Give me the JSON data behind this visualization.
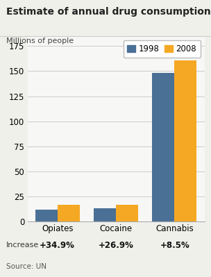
{
  "title": "Estimate of annual drug consumption",
  "ylabel": "Millions of people",
  "categories": [
    "Opiates",
    "Cocaine",
    "Cannabis"
  ],
  "values_1998": [
    12,
    13,
    148
  ],
  "values_2008": [
    17,
    17,
    161
  ],
  "color_1998": "#4a7096",
  "color_2008": "#f5a823",
  "ylim": [
    0,
    185
  ],
  "yticks": [
    0,
    25,
    50,
    75,
    100,
    125,
    150,
    175
  ],
  "increases": [
    "+34.9%",
    "+26.9%",
    "+8.5%"
  ],
  "legend_labels": [
    "1998",
    "2008"
  ],
  "source": "Source: UN",
  "increase_label": "Increase",
  "page_bg": "#f0f0eb",
  "plot_bg": "#f7f7f5",
  "title_bg": "#ffffff"
}
